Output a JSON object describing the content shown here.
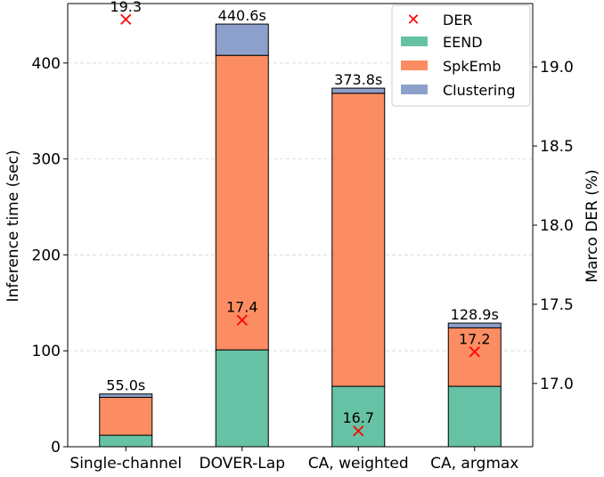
{
  "chart_data": {
    "type": "bar",
    "stacked": true,
    "dual_axis": true,
    "categories": [
      "Single-channel",
      "DOVER-Lap",
      "CA, weighted",
      "CA, argmax"
    ],
    "series": [
      {
        "name": "EEND",
        "color": "#66c2a5",
        "values": [
          12,
          101,
          63,
          63
        ]
      },
      {
        "name": "SpkEmb",
        "color": "#fc8d62",
        "values": [
          39.5,
          307,
          305.5,
          61
        ]
      },
      {
        "name": "Clustering",
        "color": "#8da0cb",
        "values": [
          3.5,
          32.6,
          5.3,
          4.9
        ]
      }
    ],
    "totals": [
      55.0,
      440.6,
      373.8,
      128.9
    ],
    "total_labels": [
      "55.0s",
      "440.6s",
      "373.8s",
      "128.9s"
    ],
    "der": {
      "name": "DER",
      "color": "#ff0000",
      "values": [
        19.3,
        17.4,
        16.7,
        17.2
      ],
      "labels": [
        "19.3",
        "17.4",
        "16.7",
        "17.2"
      ]
    },
    "ylabel": "Inference time (sec)",
    "y2label": "Marco DER (%)",
    "ylim": [
      0,
      462
    ],
    "yticks": [
      0,
      100,
      200,
      300,
      400
    ],
    "ytick_labels": [
      "0",
      "100",
      "200",
      "300",
      "400"
    ],
    "y2lim": [
      16.6,
      19.4
    ],
    "y2ticks": [
      17.0,
      17.5,
      18.0,
      18.5,
      19.0
    ],
    "y2tick_labels": [
      "17.0",
      "17.5",
      "18.0",
      "18.5",
      "19.0"
    ],
    "grid": "horizontal-dashed",
    "legend_position": "top-right",
    "legend": [
      "DER",
      "EEND",
      "SpkEmb",
      "Clustering"
    ]
  }
}
